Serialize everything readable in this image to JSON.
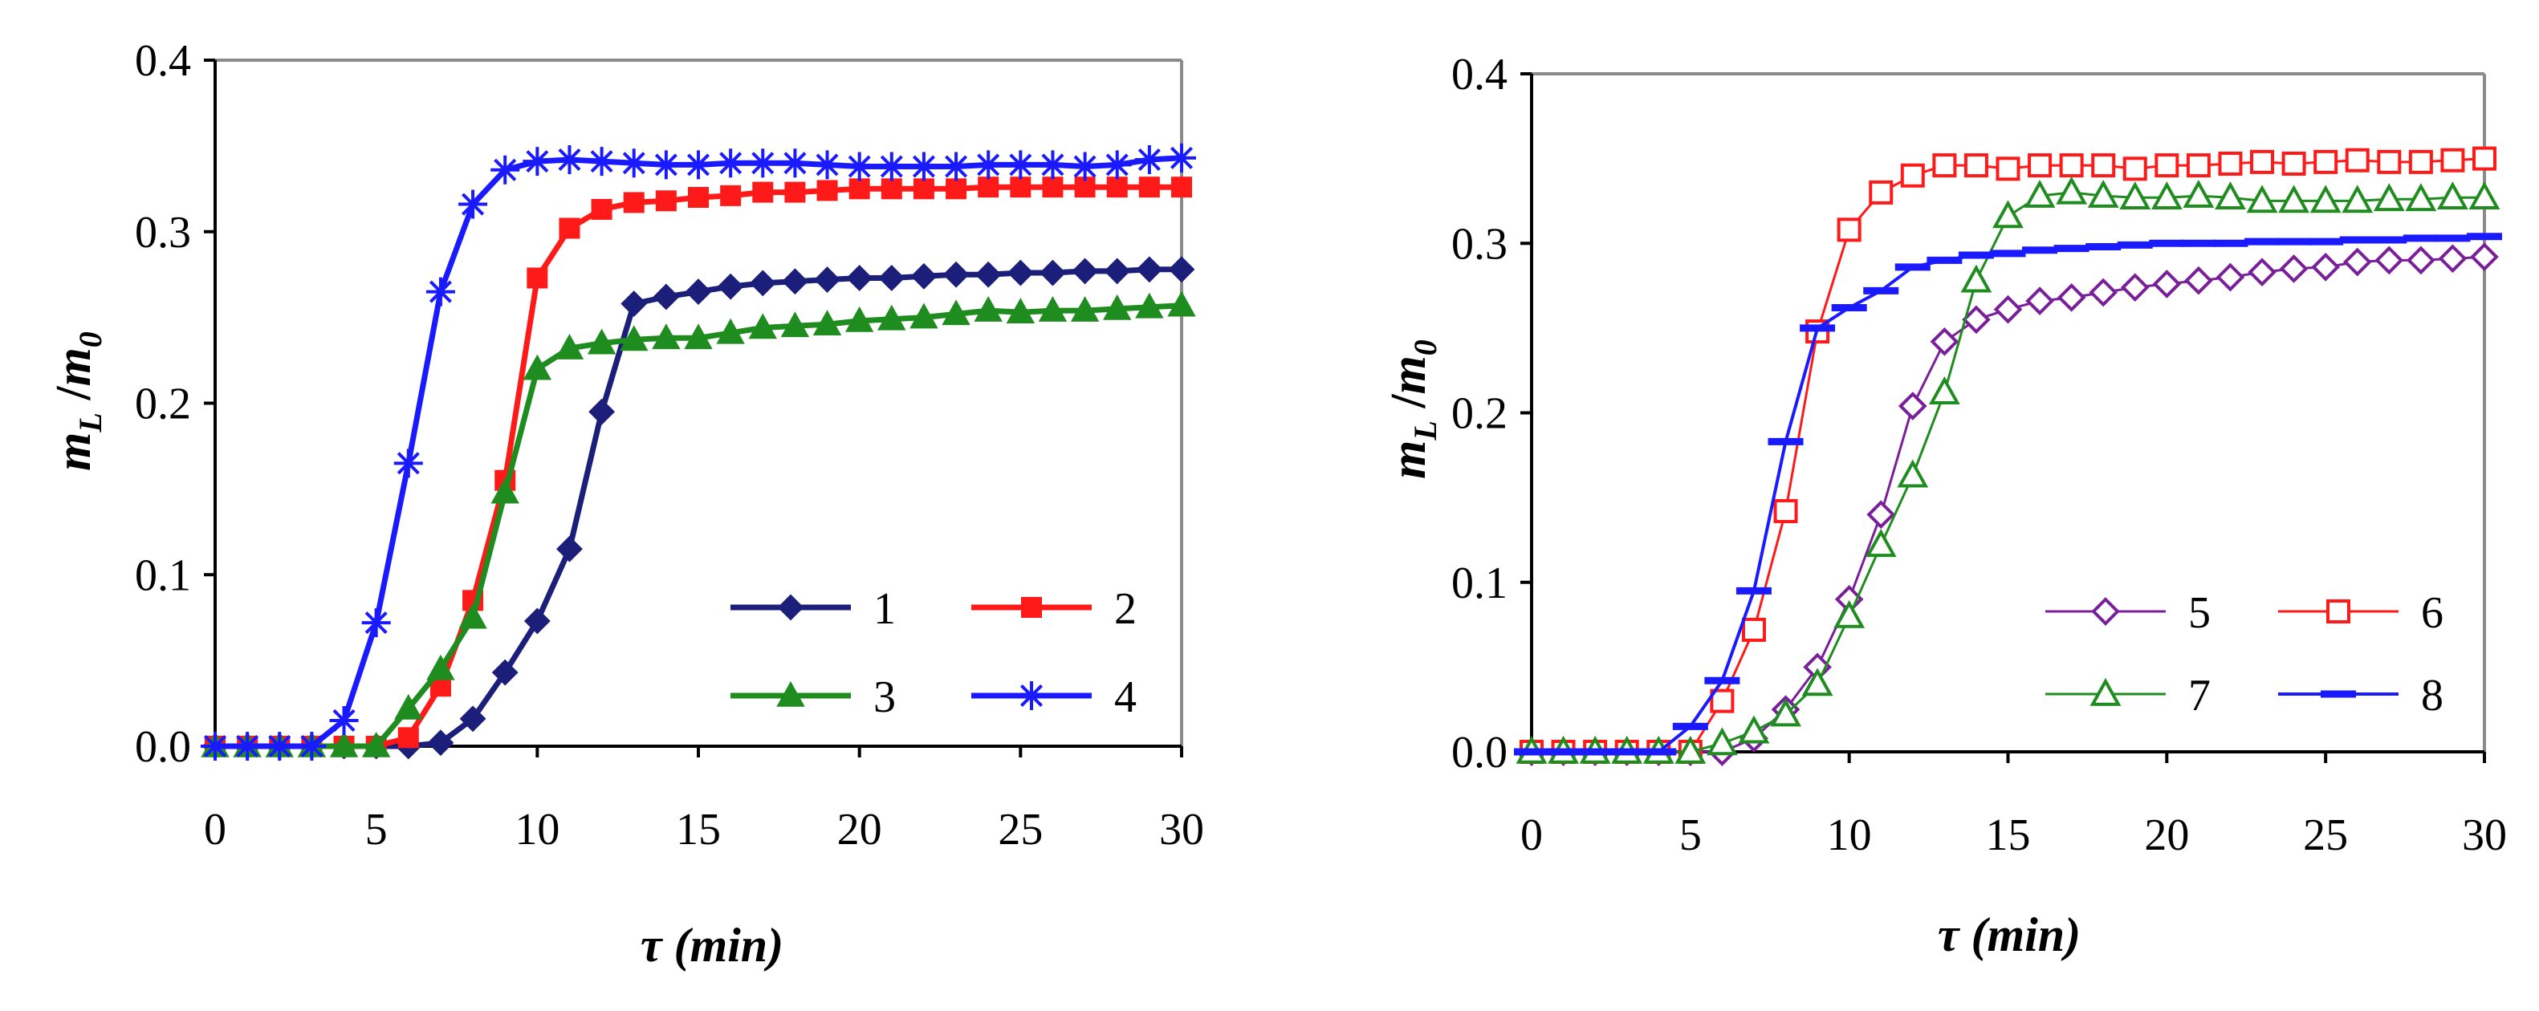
{
  "figure": {
    "panel_count": 2
  },
  "chart_data": [
    {
      "type": "line",
      "title": "",
      "xlabel": "τ (min)",
      "ylabel_main": "m",
      "ylabel_sub": "L",
      "ylabel_slash": " /",
      "ylabel_den": "m",
      "ylabel_den_sub": "0",
      "xlim": [
        0,
        30
      ],
      "ylim": [
        0,
        0.4
      ],
      "xticks": [
        0,
        5,
        10,
        15,
        20,
        25,
        30
      ],
      "xtick_labels": [
        "0",
        "5",
        "10",
        "15",
        "20",
        "25",
        "30"
      ],
      "yticks": [
        0,
        0.1,
        0.2,
        0.3,
        0.4
      ],
      "ytick_labels": [
        "0.0",
        "0.1",
        "0.2",
        "0.3",
        "0.4"
      ],
      "grid": false,
      "legend_position": "bottom-right",
      "x": [
        0,
        1,
        2,
        3,
        4,
        5,
        6,
        7,
        8,
        9,
        10,
        11,
        12,
        13,
        14,
        15,
        16,
        17,
        18,
        19,
        20,
        21,
        22,
        23,
        24,
        25,
        26,
        27,
        28,
        29,
        30
      ],
      "series": [
        {
          "name": "1",
          "color": "#1b1f7a",
          "marker": "diamond-filled",
          "line_width": 7,
          "values": [
            0,
            0,
            0,
            0,
            0,
            0,
            0,
            0.002,
            0.016,
            0.043,
            0.073,
            0.115,
            0.195,
            0.258,
            0.262,
            0.265,
            0.268,
            0.27,
            0.271,
            0.272,
            0.273,
            0.273,
            0.274,
            0.275,
            0.275,
            0.276,
            0.276,
            0.277,
            0.277,
            0.278,
            0.278
          ]
        },
        {
          "name": "2",
          "color": "#ff1a1a",
          "marker": "square-filled",
          "line_width": 7,
          "values": [
            0,
            0,
            0,
            0,
            0,
            0,
            0.005,
            0.035,
            0.085,
            0.155,
            0.273,
            0.302,
            0.313,
            0.317,
            0.318,
            0.32,
            0.321,
            0.323,
            0.323,
            0.324,
            0.325,
            0.325,
            0.325,
            0.325,
            0.326,
            0.326,
            0.326,
            0.326,
            0.326,
            0.326,
            0.326
          ]
        },
        {
          "name": "3",
          "color": "#1e8c1e",
          "marker": "triangle-filled",
          "line_width": 7,
          "values": [
            0,
            0,
            0,
            0,
            0,
            0,
            0.022,
            0.045,
            0.075,
            0.148,
            0.22,
            0.232,
            0.235,
            0.237,
            0.238,
            0.238,
            0.241,
            0.244,
            0.245,
            0.246,
            0.248,
            0.249,
            0.25,
            0.252,
            0.254,
            0.253,
            0.254,
            0.254,
            0.255,
            0.256,
            0.257
          ]
        },
        {
          "name": "4",
          "color": "#1a1aff",
          "marker": "asterisk",
          "line_width": 7,
          "values": [
            0,
            0,
            0,
            0,
            0.015,
            0.072,
            0.165,
            0.265,
            0.316,
            0.336,
            0.341,
            0.342,
            0.341,
            0.34,
            0.339,
            0.339,
            0.34,
            0.34,
            0.34,
            0.339,
            0.338,
            0.338,
            0.338,
            0.338,
            0.339,
            0.339,
            0.339,
            0.338,
            0.339,
            0.342,
            0.343
          ]
        }
      ]
    },
    {
      "type": "line",
      "title": "",
      "xlabel": "τ (min)",
      "ylabel_main": "m",
      "ylabel_sub": "L",
      "ylabel_slash": " /",
      "ylabel_den": "m",
      "ylabel_den_sub": "0",
      "xlim": [
        0,
        30
      ],
      "ylim": [
        0,
        0.4
      ],
      "xticks": [
        0,
        5,
        10,
        15,
        20,
        25,
        30
      ],
      "xtick_labels": [
        "0",
        "5",
        "10",
        "15",
        "20",
        "25",
        "30"
      ],
      "yticks": [
        0,
        0.1,
        0.2,
        0.3,
        0.4
      ],
      "ytick_labels": [
        "0.0",
        "0.1",
        "0.2",
        "0.3",
        "0.4"
      ],
      "grid": false,
      "legend_position": "bottom-right",
      "x": [
        0,
        1,
        2,
        3,
        4,
        5,
        6,
        7,
        8,
        9,
        10,
        11,
        12,
        13,
        14,
        15,
        16,
        17,
        18,
        19,
        20,
        21,
        22,
        23,
        24,
        25,
        26,
        27,
        28,
        29,
        30
      ],
      "series": [
        {
          "name": "5",
          "color": "#7a1f9a",
          "marker": "diamond-open",
          "line_width": 3,
          "values": [
            0,
            0,
            0,
            0,
            0,
            0,
            0,
            0.008,
            0.025,
            0.05,
            0.09,
            0.14,
            0.204,
            0.242,
            0.255,
            0.261,
            0.266,
            0.268,
            0.271,
            0.274,
            0.276,
            0.278,
            0.28,
            0.283,
            0.285,
            0.286,
            0.289,
            0.29,
            0.29,
            0.291,
            0.292
          ]
        },
        {
          "name": "6",
          "color": "#ff1a1a",
          "marker": "square-open",
          "line_width": 3,
          "values": [
            0,
            0,
            0,
            0,
            0,
            0,
            0.03,
            0.072,
            0.142,
            0.248,
            0.308,
            0.33,
            0.34,
            0.346,
            0.346,
            0.344,
            0.346,
            0.346,
            0.346,
            0.344,
            0.346,
            0.346,
            0.347,
            0.348,
            0.347,
            0.348,
            0.349,
            0.348,
            0.348,
            0.349,
            0.35
          ]
        },
        {
          "name": "7",
          "color": "#1e8c1e",
          "marker": "triangle-open",
          "line_width": 3,
          "values": [
            0,
            0,
            0,
            0,
            0,
            0,
            0.005,
            0.012,
            0.022,
            0.04,
            0.08,
            0.122,
            0.163,
            0.212,
            0.278,
            0.316,
            0.328,
            0.33,
            0.328,
            0.327,
            0.327,
            0.328,
            0.327,
            0.325,
            0.325,
            0.325,
            0.325,
            0.326,
            0.326,
            0.327,
            0.327
          ]
        },
        {
          "name": "8",
          "color": "#1a1aff",
          "marker": "dash",
          "line_width": 4,
          "values": [
            0,
            0,
            0,
            0,
            0,
            0.015,
            0.042,
            0.095,
            0.183,
            0.25,
            0.262,
            0.272,
            0.286,
            0.29,
            0.293,
            0.294,
            0.296,
            0.297,
            0.298,
            0.299,
            0.3,
            0.3,
            0.3,
            0.301,
            0.301,
            0.301,
            0.302,
            0.302,
            0.303,
            0.303,
            0.304
          ]
        }
      ]
    }
  ]
}
